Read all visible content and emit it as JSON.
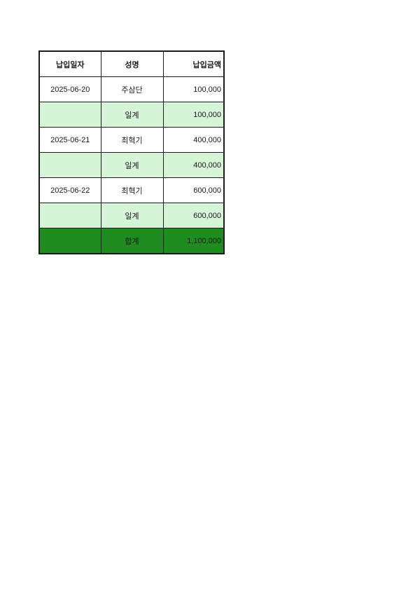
{
  "page": {
    "background": "#ffffff"
  },
  "table": {
    "columns": [
      {
        "key": "date",
        "label": "납입일자",
        "align": "center"
      },
      {
        "key": "name",
        "label": "성명",
        "align": "center"
      },
      {
        "key": "amount",
        "label": "납입금액",
        "align": "right"
      }
    ],
    "rows": [
      {
        "type": "data",
        "date": "2025-06-20",
        "name": "주삼단",
        "amount": "100,000"
      },
      {
        "type": "subtotal",
        "date": "",
        "name": "일계",
        "amount": "100,000"
      },
      {
        "type": "data",
        "date": "2025-06-21",
        "name": "최혁기",
        "amount": "400,000"
      },
      {
        "type": "subtotal",
        "date": "",
        "name": "일계",
        "amount": "400,000"
      },
      {
        "type": "data",
        "date": "2025-06-22",
        "name": "최혁기",
        "amount": "600,000"
      },
      {
        "type": "subtotal",
        "date": "",
        "name": "일계",
        "amount": "600,000"
      },
      {
        "type": "total",
        "date": "",
        "name": "합계",
        "amount": "1,100,000"
      }
    ],
    "colors": {
      "subtotal_bg": "#d6f5d6",
      "total_bg": "#1e8c1e",
      "border": "#1a1a1a",
      "text": "#1a1a1a",
      "row_bg": "#ffffff"
    }
  }
}
